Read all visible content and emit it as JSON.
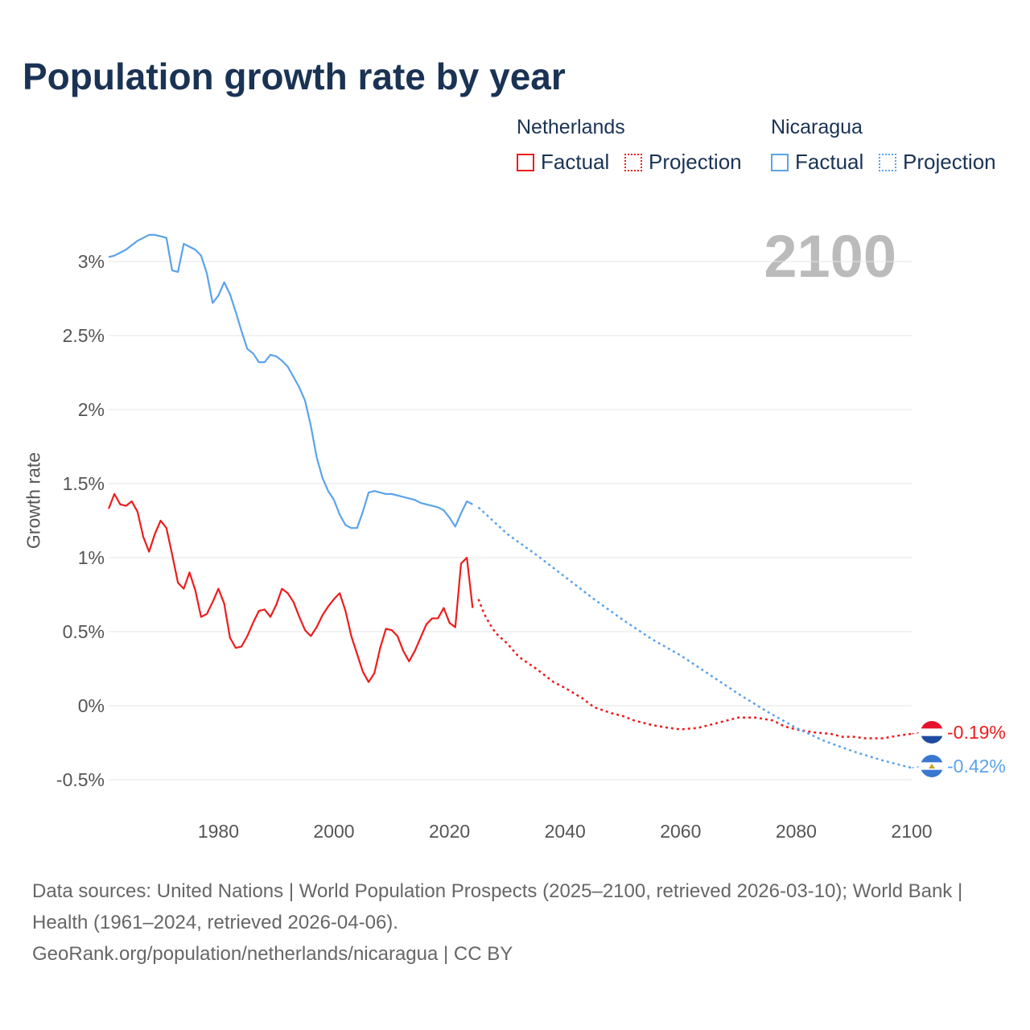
{
  "chart_data": {
    "type": "line",
    "title": "Population growth rate by year",
    "ylabel": "Growth rate",
    "xlabel": "",
    "current_year_label": "2100",
    "xlim": [
      1961,
      2100
    ],
    "ylim": [
      -0.5,
      3
    ],
    "x_ticks": [
      1980,
      2000,
      2020,
      2040,
      2060,
      2080,
      2100
    ],
    "x_tick_labels": [
      "1980",
      "2000",
      "2020",
      "2040",
      "2060",
      "2080",
      "2100"
    ],
    "y_ticks": [
      -0.5,
      0,
      0.5,
      1,
      1.5,
      2,
      2.5,
      3
    ],
    "y_tick_labels": [
      "-0.5%",
      "0%",
      "0.5%",
      "1%",
      "1.5%",
      "2%",
      "2.5%",
      "3%"
    ],
    "grid": true,
    "legend": {
      "position": "top-right",
      "groups": [
        {
          "name": "Netherlands",
          "items": [
            "Factual",
            "Projection"
          ]
        },
        {
          "name": "Nicaragua",
          "items": [
            "Factual",
            "Projection"
          ]
        }
      ]
    },
    "series": [
      {
        "name": "Netherlands",
        "color": "#ee1c1c",
        "end_label": "-0.19%",
        "factual": {
          "x_start": 1961,
          "values": [
            1.33,
            1.43,
            1.36,
            1.35,
            1.38,
            1.31,
            1.14,
            1.04,
            1.16,
            1.25,
            1.2,
            1.02,
            0.83,
            0.79,
            0.9,
            0.78,
            0.6,
            0.62,
            0.7,
            0.79,
            0.69,
            0.46,
            0.39,
            0.4,
            0.47,
            0.56,
            0.64,
            0.65,
            0.6,
            0.68,
            0.79,
            0.76,
            0.7,
            0.6,
            0.51,
            0.47,
            0.53,
            0.61,
            0.67,
            0.72,
            0.76,
            0.64,
            0.47,
            0.35,
            0.23,
            0.16,
            0.22,
            0.39,
            0.52,
            0.51,
            0.47,
            0.37,
            0.3,
            0.37,
            0.46,
            0.55,
            0.59,
            0.59,
            0.66,
            0.56,
            0.53,
            0.96,
            1.0,
            0.66
          ]
        },
        "projection": {
          "x": [
            2025,
            2026,
            2027,
            2028,
            2030,
            2032,
            2035,
            2038,
            2040,
            2043,
            2045,
            2048,
            2050,
            2052,
            2055,
            2058,
            2060,
            2063,
            2066,
            2070,
            2073,
            2076,
            2078,
            2080,
            2083,
            2086,
            2088,
            2090,
            2092,
            2095,
            2098,
            2100
          ],
          "values": [
            0.72,
            0.62,
            0.55,
            0.49,
            0.42,
            0.33,
            0.25,
            0.16,
            0.12,
            0.05,
            -0.01,
            -0.05,
            -0.07,
            -0.1,
            -0.13,
            -0.15,
            -0.16,
            -0.15,
            -0.12,
            -0.08,
            -0.08,
            -0.1,
            -0.14,
            -0.16,
            -0.18,
            -0.19,
            -0.21,
            -0.21,
            -0.22,
            -0.22,
            -0.2,
            -0.19
          ]
        }
      },
      {
        "name": "Nicaragua",
        "color": "#5ba3ea",
        "end_label": "-0.42%",
        "factual": {
          "x_start": 1961,
          "values": [
            3.03,
            3.04,
            3.06,
            3.08,
            3.11,
            3.14,
            3.16,
            3.18,
            3.18,
            3.17,
            3.16,
            2.94,
            2.93,
            3.12,
            3.1,
            3.08,
            3.04,
            2.92,
            2.72,
            2.77,
            2.86,
            2.78,
            2.66,
            2.53,
            2.41,
            2.38,
            2.32,
            2.32,
            2.37,
            2.36,
            2.33,
            2.29,
            2.22,
            2.15,
            2.06,
            1.89,
            1.68,
            1.54,
            1.45,
            1.39,
            1.29,
            1.22,
            1.2,
            1.2,
            1.31,
            1.44,
            1.45,
            1.44,
            1.43,
            1.43,
            1.42,
            1.41,
            1.4,
            1.39,
            1.37,
            1.36,
            1.35,
            1.34,
            1.32,
            1.27,
            1.21,
            1.3,
            1.38,
            1.36
          ]
        },
        "projection": {
          "x": [
            2025,
            2030,
            2035,
            2040,
            2045,
            2050,
            2055,
            2060,
            2065,
            2070,
            2075,
            2080,
            2085,
            2090,
            2095,
            2100
          ],
          "values": [
            1.34,
            1.16,
            1.02,
            0.87,
            0.72,
            0.58,
            0.45,
            0.34,
            0.21,
            0.08,
            -0.04,
            -0.15,
            -0.24,
            -0.31,
            -0.37,
            -0.42
          ]
        }
      }
    ]
  },
  "legend": {
    "nl": "Netherlands",
    "ni": "Nicaragua",
    "factual": "Factual",
    "projection": "Projection"
  },
  "source": {
    "line1": "Data sources: United Nations | World Population Prospects (2025–2100, retrieved 2026-03-10); World Bank | Health (1961–2024, retrieved 2026-04-06).",
    "line2": "GeoRank.org/population/netherlands/nicaragua | CC BY"
  }
}
